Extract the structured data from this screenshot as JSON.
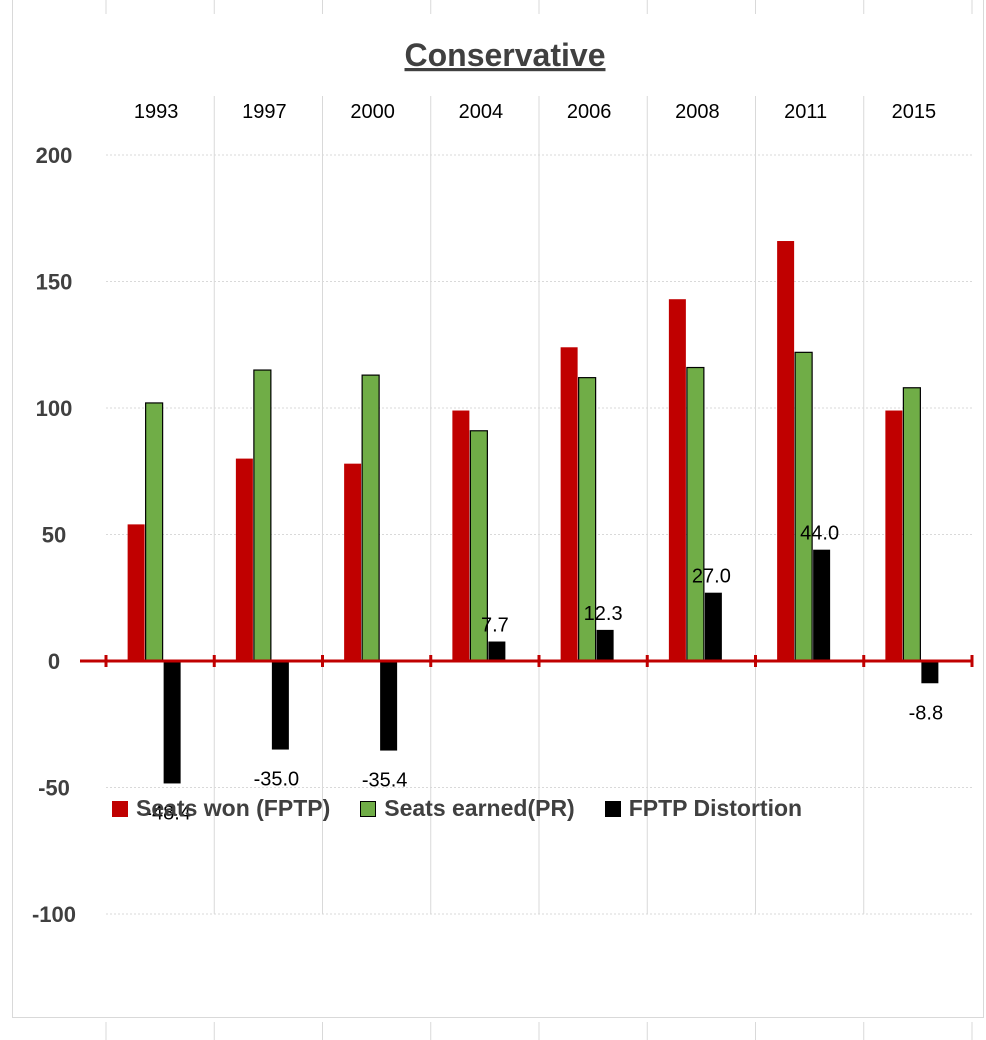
{
  "chart_data": {
    "type": "bar",
    "title": "Conservative",
    "categories": [
      "1993",
      "1997",
      "2000",
      "2004",
      "2006",
      "2008",
      "2011",
      "2015"
    ],
    "ylim": [
      -100,
      200
    ],
    "yticks": [
      200,
      150,
      100,
      50,
      0,
      -50,
      -100
    ],
    "grid": true,
    "legend_position": "bottom",
    "series": [
      {
        "name": "Seats won (FPTP)",
        "color": "#c00000",
        "values": [
          54,
          80,
          78,
          99,
          124,
          143,
          166,
          99
        ]
      },
      {
        "name": "Seats earned(PR)",
        "color": "#70ad47",
        "values": [
          102,
          115,
          113,
          91,
          112,
          116,
          122,
          108
        ]
      },
      {
        "name": "FPTP Distortion",
        "color": "#000000",
        "values": [
          -48.4,
          -35.0,
          -35.4,
          7.7,
          12.3,
          27.0,
          44.0,
          -8.8
        ]
      }
    ],
    "data_labels": [
      "-48.4",
      "-35.0",
      "-35.4",
      "7.7",
      "12.3",
      "27.0",
      "44.0",
      "-8.8"
    ],
    "axis_color": "#c00000"
  }
}
